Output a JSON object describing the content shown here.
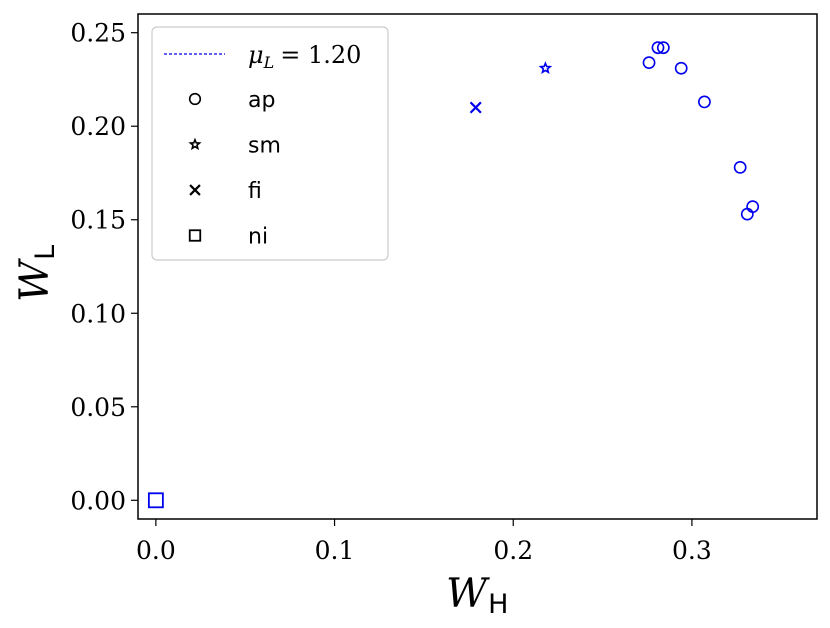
{
  "chart_data": {
    "type": "scatter",
    "x_label": {
      "main": "W",
      "sub": "H"
    },
    "y_label": {
      "main": "W",
      "sub": "L"
    },
    "xlim": [
      -0.01,
      0.37
    ],
    "ylim": [
      -0.01,
      0.26
    ],
    "x_ticks": [
      "0.0",
      "0.1",
      "0.2",
      "0.3"
    ],
    "x_tick_values": [
      0.0,
      0.1,
      0.2,
      0.3
    ],
    "y_ticks": [
      "0.00",
      "0.05",
      "0.10",
      "0.15",
      "0.20",
      "0.25"
    ],
    "y_tick_values": [
      0.0,
      0.05,
      0.1,
      0.15,
      0.2,
      0.25
    ],
    "grid": false,
    "legend": {
      "placement": "top-left",
      "line_entry": {
        "mu": "μ",
        "sub": "L",
        "rest": "= 1.20"
      },
      "marker_entries": [
        {
          "marker": "circle",
          "label": "ap"
        },
        {
          "marker": "star",
          "label": "sm"
        },
        {
          "marker": "x",
          "label": "fi"
        },
        {
          "marker": "square",
          "label": "ni"
        }
      ]
    },
    "series_color": "#0000ee",
    "points": [
      {
        "type": "ap",
        "x": 0.276,
        "y": 0.234
      },
      {
        "type": "ap",
        "x": 0.281,
        "y": 0.242
      },
      {
        "type": "ap",
        "x": 0.284,
        "y": 0.242
      },
      {
        "type": "ap",
        "x": 0.294,
        "y": 0.231
      },
      {
        "type": "ap",
        "x": 0.307,
        "y": 0.213
      },
      {
        "type": "ap",
        "x": 0.327,
        "y": 0.178
      },
      {
        "type": "ap",
        "x": 0.331,
        "y": 0.153
      },
      {
        "type": "ap",
        "x": 0.334,
        "y": 0.157
      },
      {
        "type": "sm",
        "x": 0.218,
        "y": 0.231
      },
      {
        "type": "fi",
        "x": 0.179,
        "y": 0.21
      },
      {
        "type": "ni",
        "x": 0.0,
        "y": 0.0
      }
    ]
  }
}
